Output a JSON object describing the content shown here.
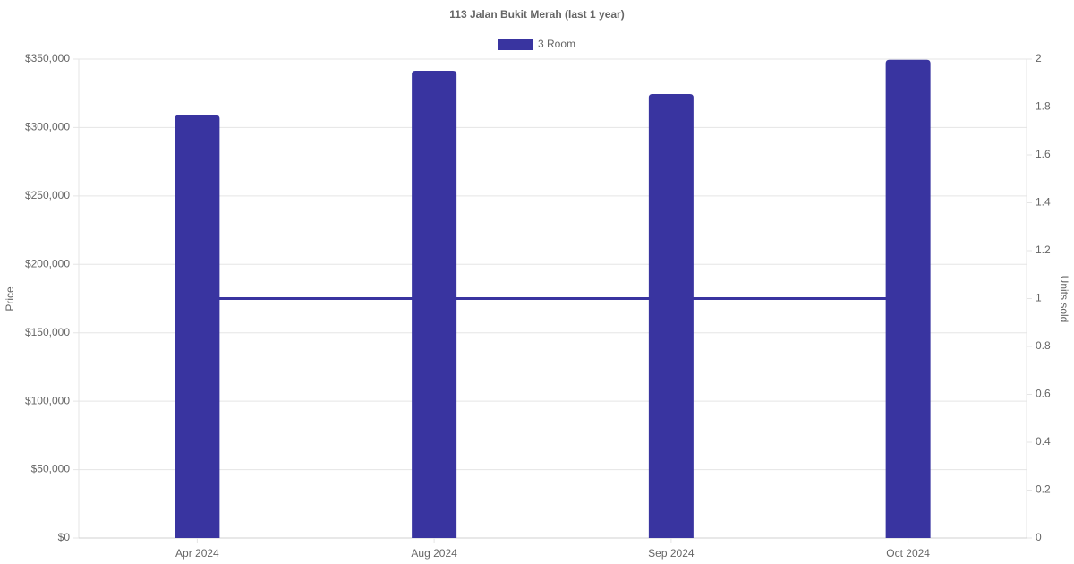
{
  "chart_data": {
    "type": "bar",
    "title": "113 Jalan Bukit Merah (last 1 year)",
    "categories": [
      "Apr 2024",
      "Aug 2024",
      "Sep 2024",
      "Oct 2024"
    ],
    "series": [
      {
        "name": "3 Room",
        "type": "bar",
        "color": "#3934a0",
        "values": [
          309000,
          341500,
          324500,
          349500
        ]
      },
      {
        "type": "line",
        "axis": "y2",
        "color": "#3934a0",
        "values": [
          1,
          1,
          1,
          1
        ]
      }
    ],
    "ylabel": "Price",
    "y2label": "Units sold",
    "ylim": [
      0,
      350000
    ],
    "yticks": [
      {
        "value": 0,
        "label": "$0"
      },
      {
        "value": 50000,
        "label": "$50,000"
      },
      {
        "value": 100000,
        "label": "$100,000"
      },
      {
        "value": 150000,
        "label": "$150,000"
      },
      {
        "value": 200000,
        "label": "$200,000"
      },
      {
        "value": 250000,
        "label": "$250,000"
      },
      {
        "value": 300000,
        "label": "$300,000"
      },
      {
        "value": 350000,
        "label": "$350,000"
      }
    ],
    "y2lim": [
      0,
      2
    ],
    "y2ticks": [
      0,
      0.2,
      0.4,
      0.6,
      0.8,
      1,
      1.2,
      1.4,
      1.6,
      1.8,
      2
    ],
    "grid": true,
    "legend": "top"
  }
}
